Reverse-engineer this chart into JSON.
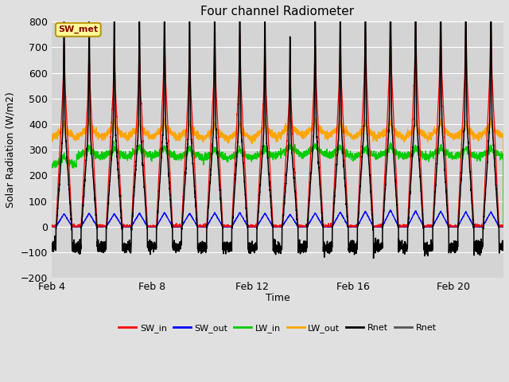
{
  "title": "Four channel Radiometer",
  "xlabel": "Time",
  "ylabel": "Solar Radiation (W/m2)",
  "ylim": [
    -200,
    800
  ],
  "yticks": [
    -200,
    -100,
    0,
    100,
    200,
    300,
    400,
    500,
    600,
    700,
    800
  ],
  "xlim_start": 4,
  "xlim_end": 22,
  "xtick_positions": [
    4,
    8,
    12,
    16,
    20
  ],
  "xtick_labels": [
    "Feb 4",
    "Feb 8",
    "Feb 12",
    "Feb 16",
    "Feb 20"
  ],
  "bg_color": "#e0e0e0",
  "plot_bg_color": "#d4d4d4",
  "grid_color": "#ffffff",
  "sw_met_label": "SW_met",
  "sw_met_text_color": "#8b0000",
  "sw_met_bg_color": "#ffff99",
  "sw_met_border_color": "#b8960c",
  "legend_entries": [
    {
      "label": "SW_in",
      "color": "#ff0000"
    },
    {
      "label": "SW_out",
      "color": "#0000ff"
    },
    {
      "label": "LW_in",
      "color": "#00cc00"
    },
    {
      "label": "LW_out",
      "color": "#ffa500"
    },
    {
      "label": "Rnet",
      "color": "#000000"
    },
    {
      "label": "Rnet",
      "color": "#555555"
    }
  ],
  "sw_peaks": [
    630,
    610,
    625,
    628,
    665,
    628,
    645,
    650,
    615,
    550,
    640,
    650,
    680,
    700,
    700,
    695,
    690,
    690
  ],
  "sw_out_peaks": [
    50,
    52,
    50,
    53,
    55,
    52,
    54,
    54,
    52,
    48,
    53,
    57,
    60,
    65,
    62,
    60,
    58,
    58
  ],
  "lw_in_base": [
    235,
    268,
    270,
    272,
    270,
    267,
    262,
    262,
    267,
    278,
    278,
    272,
    267,
    272,
    267,
    270,
    267,
    270
  ],
  "lw_out_base": [
    335,
    342,
    342,
    342,
    342,
    337,
    332,
    332,
    337,
    347,
    347,
    342,
    337,
    342,
    337,
    342,
    337,
    342
  ],
  "n_days": 18,
  "day_start": 4,
  "figsize": [
    6.4,
    4.8
  ],
  "dpi": 100
}
